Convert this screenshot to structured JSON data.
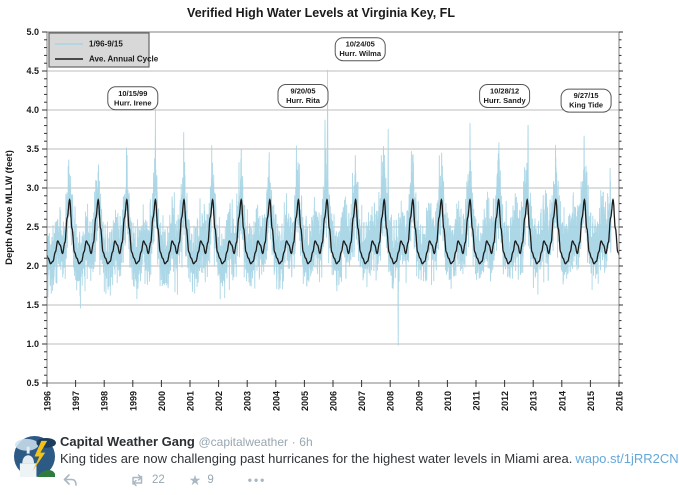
{
  "colors": {
    "observed_series": "#a5d4e4",
    "annual_cycle": "#1b1b1b",
    "gridline": "#bdbdbd",
    "plot_frame": "#808080",
    "legend_bg": "#d8d8d8",
    "annotation_border": "#555555",
    "link_blue": "#64a8d9",
    "icon_gray": "#aab8c2",
    "muted_gray": "#99a7b0",
    "name_dark": "#292f33"
  },
  "chart_data": {
    "type": "line",
    "title": "Verified High Water Levels at Virginia Key, FL",
    "xlabel": "",
    "ylabel": "Depth Above MLLW (feet)",
    "ylim": [
      0.5,
      5.0
    ],
    "ytick_step": 0.5,
    "ytick_minor_step": 0.1,
    "xlim": [
      1996,
      2016
    ],
    "xtick_step": 1,
    "xtick_labels": [
      "1996",
      "1997",
      "1998",
      "1999",
      "2000",
      "2001",
      "2002",
      "2003",
      "2004",
      "2005",
      "2006",
      "2007",
      "2008",
      "2009",
      "2010",
      "2011",
      "2012",
      "2013",
      "2014",
      "2015",
      "2016"
    ],
    "grid": "horizontal-only",
    "legend": {
      "position": "upper-left",
      "entries": [
        {
          "label": "1/96-9/15",
          "color": "#a5d4e4"
        },
        {
          "label": "Ave. Annual Cycle",
          "color": "#1b1b1b"
        }
      ]
    },
    "series": [
      {
        "name": "1/96-9/15",
        "role": "observed-high-water",
        "color": "#a5d4e4",
        "x_start": 1996.0,
        "x_end": 2015.72,
        "typical_band_ft": [
          1.4,
          3.3
        ],
        "trend_ft_per_year": 0.008,
        "noise": {
          "seed": 42,
          "fortnight_amp": 0.17,
          "fortnight_period_days": 14.76,
          "monthly_amp": 0.09,
          "monthly_period_days": 27.55,
          "random_amp": 0.3,
          "peak_amp_scale": 0.55
        }
      },
      {
        "name": "Ave. Annual Cycle",
        "role": "average-annual-cycle",
        "color": "#1b1b1b",
        "x_start": 1996.0,
        "x_end": 2016.0,
        "monthly_values_ft": [
          2.1,
          2.03,
          2.06,
          2.18,
          2.32,
          2.27,
          2.16,
          2.3,
          2.62,
          2.85,
          2.48,
          2.18
        ]
      }
    ],
    "labeled_events": [
      {
        "date": "10/15/99",
        "label": "Hurr. Irene",
        "x": 1999.79,
        "peak_ft": 4.12
      },
      {
        "date": "9/20/05",
        "label": "Hurr. Rita",
        "x": 2005.72,
        "peak_ft": 3.95
      },
      {
        "date": "10/24/05",
        "label": "Hurr. Wilma",
        "x": 2005.81,
        "peak_ft": 4.55
      },
      {
        "date": "10/28/12",
        "label": "Hurr. Sandy",
        "x": 2012.82,
        "peak_ft": 3.97
      },
      {
        "date": "9/27/15",
        "label": "King Tide",
        "x": 2015.74,
        "peak_ft": 4.0
      }
    ],
    "annotations": [
      {
        "line1": "10/15/99",
        "line2": "Hurr. Irene",
        "box_x": 1999.0,
        "box_y_ft": 4.15
      },
      {
        "line1": "9/20/05",
        "line2": "Hurr. Rita",
        "box_x": 2004.95,
        "box_y_ft": 4.18
      },
      {
        "line1": "10/24/05",
        "line2": "Hurr. Wilma",
        "box_x": 2006.95,
        "box_y_ft": 4.78
      },
      {
        "line1": "10/28/12",
        "line2": "Hurr. Sandy",
        "box_x": 2012.0,
        "box_y_ft": 4.18
      },
      {
        "line1": "9/27/15",
        "line2": "King Tide",
        "box_x": 2014.85,
        "box_y_ft": 4.12
      }
    ],
    "unlabeled_peaks": [
      [
        1996.76,
        3.5
      ],
      [
        1997.8,
        3.45
      ],
      [
        1998.78,
        3.65
      ],
      [
        2000.78,
        3.75
      ],
      [
        2001.76,
        3.6
      ],
      [
        2002.78,
        3.5
      ],
      [
        2003.76,
        3.45
      ],
      [
        2004.72,
        3.55
      ],
      [
        2006.78,
        3.55
      ],
      [
        2007.93,
        3.9
      ],
      [
        2008.8,
        3.5
      ],
      [
        2009.8,
        3.6
      ],
      [
        2010.79,
        3.85
      ],
      [
        2011.8,
        3.6
      ],
      [
        2013.78,
        3.6
      ],
      [
        2014.78,
        3.8
      ]
    ],
    "low_extreme": {
      "x": 2008.28,
      "value_ft": 0.9
    }
  },
  "tweet": {
    "display_name": "Capital Weather Gang",
    "handle": "@capitalweather",
    "separator": "·",
    "time": "6h",
    "text": "King tides are now challenging past hurricanes for the highest water levels in Miami area.",
    "link": "wapo.st/1jRR2CN",
    "retweet_count": "22",
    "favorite_count": "9",
    "more_glyph": "•••"
  }
}
